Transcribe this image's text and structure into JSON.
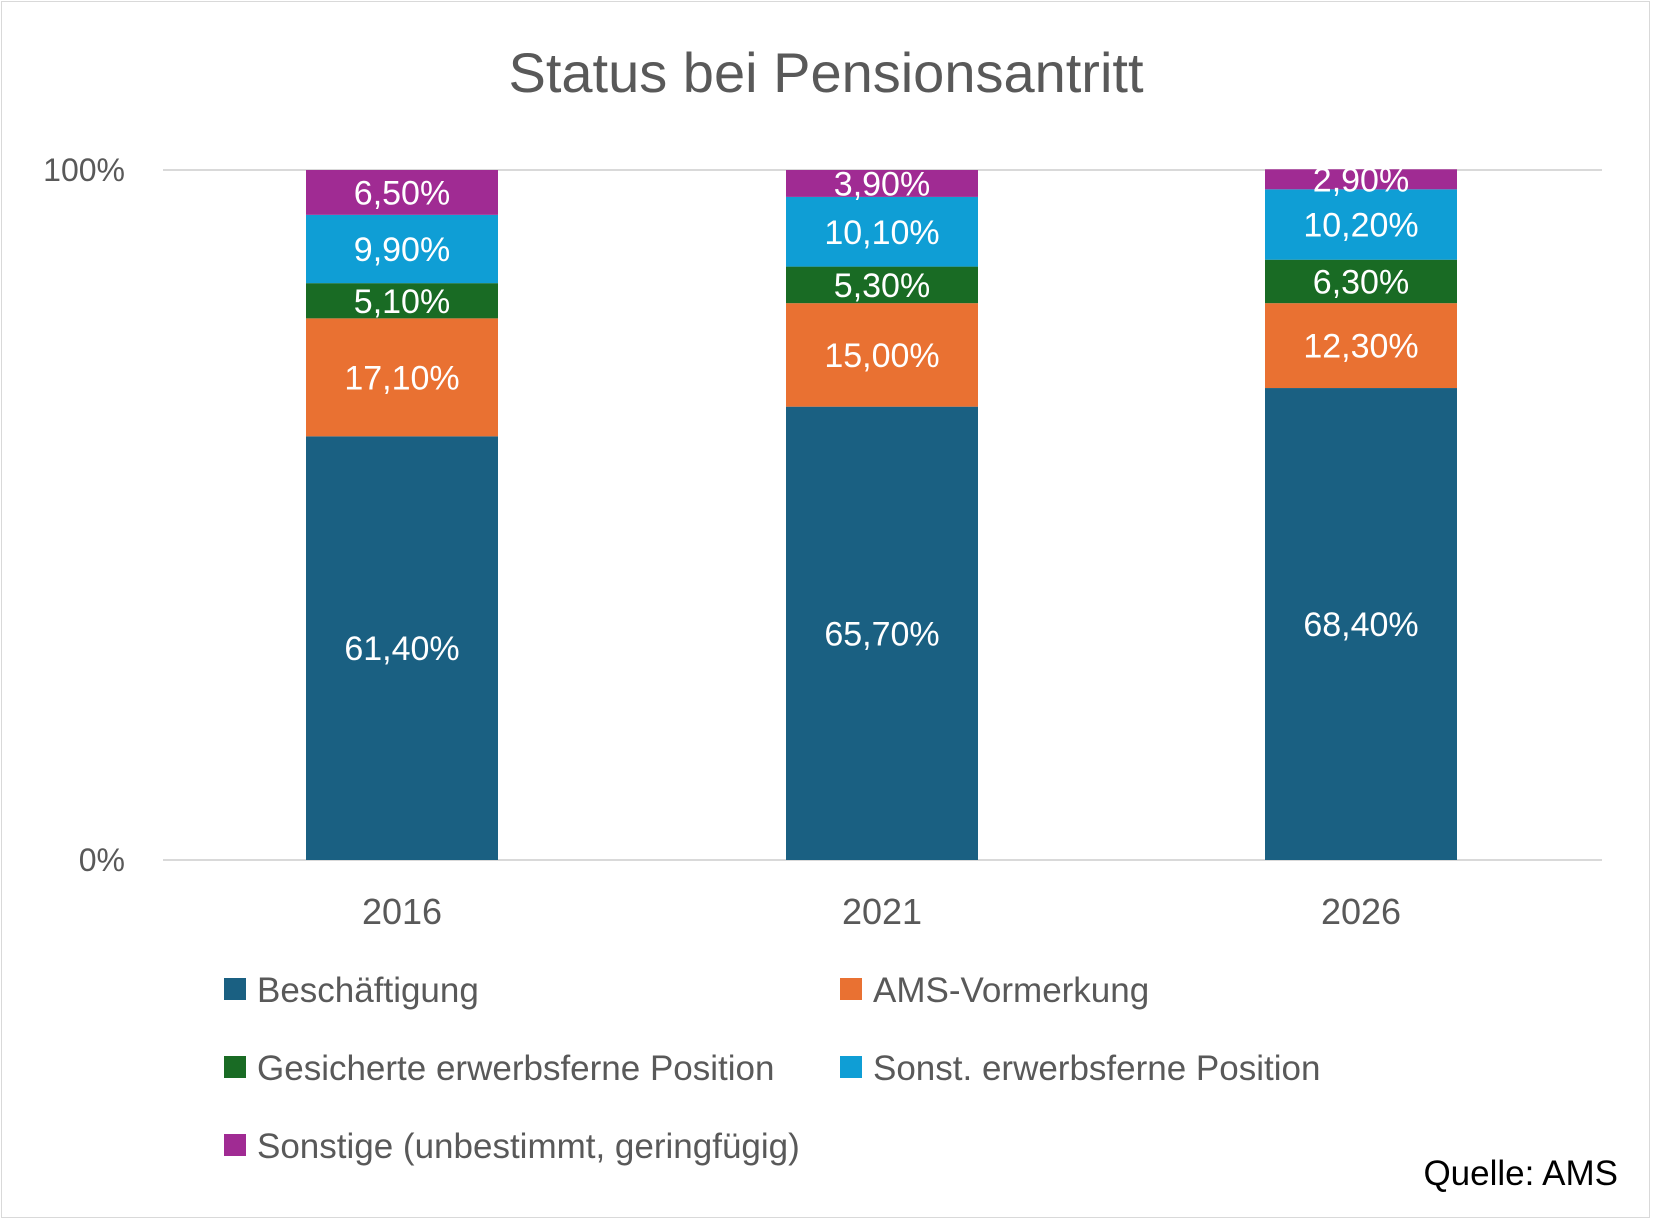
{
  "chart_data": {
    "type": "bar",
    "stacked": true,
    "percent_stacked": true,
    "title": "Status bei Pensionsantritt",
    "categories": [
      "2016",
      "2021",
      "2026"
    ],
    "series": [
      {
        "name": "Beschäftigung",
        "values": [
          61.4,
          65.7,
          68.4
        ],
        "labels": [
          "61,40%",
          "65,70%",
          "68,40%"
        ],
        "color": "#1a6082"
      },
      {
        "name": "AMS-Vormerkung",
        "values": [
          17.1,
          15.0,
          12.3
        ],
        "labels": [
          "17,10%",
          "15,00%",
          "12,30%"
        ],
        "color": "#e97132"
      },
      {
        "name": "Gesicherte erwerbsferne Position",
        "values": [
          5.1,
          5.3,
          6.3
        ],
        "labels": [
          "5,10%",
          "5,30%",
          "6,30%"
        ],
        "color": "#196b24"
      },
      {
        "name": "Sonst. erwerbsferne Position",
        "values": [
          9.9,
          10.1,
          10.2
        ],
        "labels": [
          "9,90%",
          "10,10%",
          "10,20%"
        ],
        "color": "#0f9ed5"
      },
      {
        "name": "Sonstige (unbestimmt, geringfügig)",
        "values": [
          6.5,
          3.9,
          2.9
        ],
        "labels": [
          "6,50%",
          "3,90%",
          "2,90%"
        ],
        "color": "#a02b93"
      }
    ],
    "y_ticks": [
      "0%",
      "100%"
    ],
    "ylim": [
      0,
      100
    ],
    "grid": true,
    "legend_position": "bottom",
    "source": "Quelle: AMS",
    "colors": {
      "axis": "#d9d9d9",
      "text": "#595959"
    }
  }
}
